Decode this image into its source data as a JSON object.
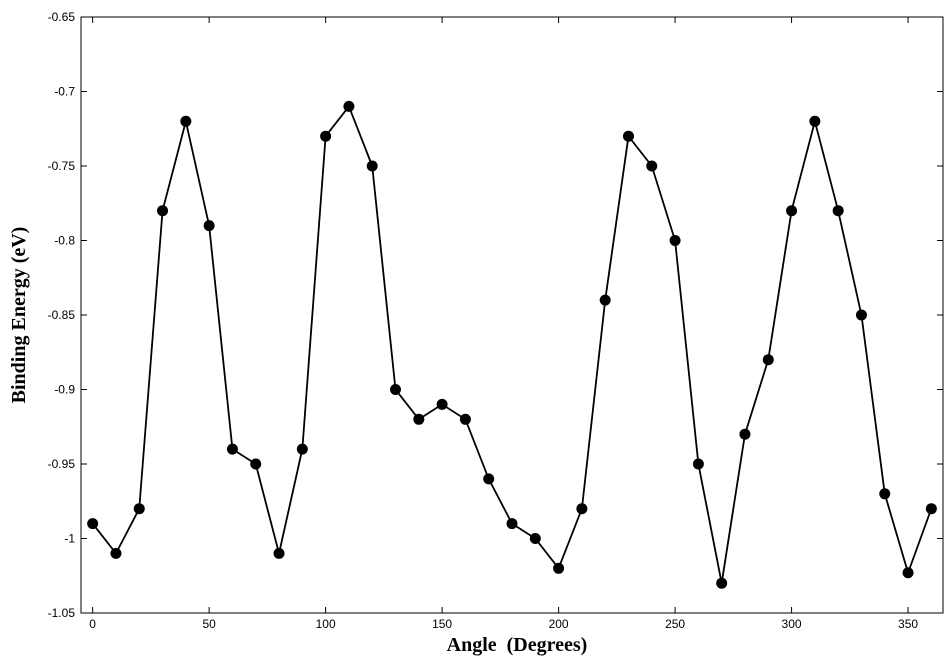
{
  "chart_data": {
    "type": "line",
    "title": "",
    "xlabel": "Angle  (Degrees)",
    "ylabel": "Binding Energy (eV)",
    "xlim": [
      -5,
      365
    ],
    "ylim": [
      -1.05,
      -0.65
    ],
    "xticks": [
      0,
      50,
      100,
      150,
      200,
      250,
      300,
      350
    ],
    "xtick_labels": [
      "0",
      "50",
      "100",
      "150",
      "200",
      "250",
      "300",
      "350"
    ],
    "yticks": [
      -1.05,
      -1.0,
      -0.95,
      -0.9,
      -0.85,
      -0.8,
      -0.75,
      -0.7,
      -0.65
    ],
    "ytick_labels": [
      "-1.05",
      "-1",
      "-0.95",
      "-0.9",
      "-0.85",
      "-0.8",
      "-0.75",
      "-0.7",
      "-0.65"
    ],
    "grid": false,
    "legend": "none",
    "series": [
      {
        "color": "#000000",
        "marker": "circle",
        "x": [
          0,
          10,
          20,
          30,
          40,
          50,
          60,
          70,
          80,
          90,
          100,
          110,
          120,
          130,
          140,
          150,
          160,
          170,
          180,
          190,
          200,
          210,
          220,
          230,
          240,
          250,
          260,
          270,
          280,
          290,
          300,
          310,
          320,
          330,
          340,
          350,
          360
        ],
        "y": [
          -0.99,
          -1.01,
          -0.98,
          -0.78,
          -0.72,
          -0.79,
          -0.94,
          -0.95,
          -1.01,
          -0.94,
          -0.73,
          -0.71,
          -0.75,
          -0.9,
          -0.92,
          -0.91,
          -0.92,
          -0.96,
          -0.99,
          -1.0,
          -1.02,
          -0.98,
          -0.84,
          -0.73,
          -0.75,
          -0.8,
          -0.95,
          -1.03,
          -0.93,
          -0.88,
          -0.78,
          -0.72,
          -0.78,
          -0.85,
          -0.97,
          -1.023,
          -0.98
        ]
      }
    ]
  }
}
